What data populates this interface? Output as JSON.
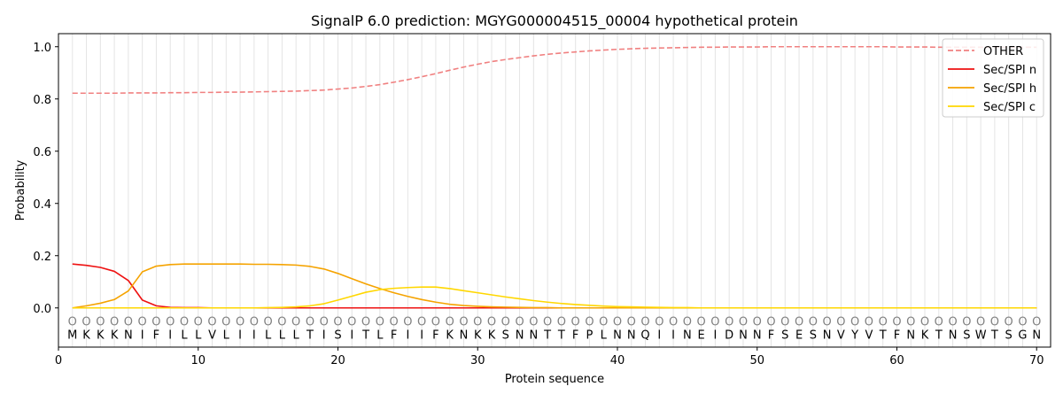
{
  "chart_data": {
    "type": "line",
    "title": "SignalP 6.0 prediction: MGYG000004515_00004 hypothetical protein",
    "xlabel": "Protein sequence",
    "ylabel": "Probability",
    "xlim": [
      0,
      71
    ],
    "ylim": [
      -0.15,
      1.05
    ],
    "x_ticks": [
      0,
      10,
      20,
      30,
      40,
      50,
      60,
      70
    ],
    "y_ticks": [
      0.0,
      0.2,
      0.4,
      0.6,
      0.8,
      1.0
    ],
    "y_tick_labels": [
      "0.0",
      "0.2",
      "0.4",
      "0.6",
      "0.8",
      "1.0"
    ],
    "grid": "vertical lines at each residue",
    "legend_position": "top-right",
    "sequence": [
      "M",
      "K",
      "K",
      "K",
      "N",
      "I",
      "F",
      "I",
      "L",
      "L",
      "V",
      "L",
      "I",
      "I",
      "L",
      "L",
      "L",
      "T",
      "I",
      "S",
      "I",
      "T",
      "L",
      "F",
      "I",
      "I",
      "F",
      "K",
      "N",
      "K",
      "K",
      "S",
      "N",
      "N",
      "T",
      "T",
      "F",
      "P",
      "L",
      "N",
      "N",
      "Q",
      "I",
      "I",
      "N",
      "E",
      "I",
      "D",
      "N",
      "N",
      "F",
      "S",
      "E",
      "S",
      "N",
      "V",
      "Y",
      "V",
      "T",
      "F",
      "N",
      "K",
      "T",
      "N",
      "S",
      "W",
      "T",
      "S",
      "G",
      "N"
    ],
    "position_marker": "O",
    "series": [
      {
        "name": "OTHER",
        "color": "#f08080",
        "style": "dashed",
        "values": [
          0.822,
          0.822,
          0.822,
          0.822,
          0.823,
          0.823,
          0.823,
          0.824,
          0.824,
          0.825,
          0.825,
          0.826,
          0.826,
          0.827,
          0.828,
          0.829,
          0.83,
          0.832,
          0.834,
          0.838,
          0.842,
          0.848,
          0.855,
          0.864,
          0.874,
          0.885,
          0.897,
          0.91,
          0.922,
          0.933,
          0.943,
          0.951,
          0.958,
          0.965,
          0.971,
          0.976,
          0.98,
          0.984,
          0.987,
          0.99,
          0.992,
          0.994,
          0.995,
          0.996,
          0.997,
          0.998,
          0.998,
          0.999,
          0.999,
          0.999,
          1.0,
          1.0,
          1.0,
          1.0,
          1.0,
          1.0,
          1.0,
          1.0,
          1.0,
          0.999,
          0.999,
          0.999,
          0.998,
          0.998,
          0.998,
          0.998,
          0.998,
          0.998,
          0.998,
          0.998
        ]
      },
      {
        "name": "Sec/SPI n",
        "color": "#ee1111",
        "style": "solid",
        "values": [
          0.168,
          0.163,
          0.155,
          0.14,
          0.105,
          0.03,
          0.008,
          0.002,
          0.001,
          0.001,
          0.0,
          0.0,
          0.0,
          0.0,
          0.0,
          0.0,
          0.0,
          0.0,
          0.0,
          0.0,
          0.0,
          0.0,
          0.0,
          0.0,
          0.0,
          0.0,
          0.0,
          0.0,
          0.0,
          0.0,
          0.0,
          0.0,
          0.0,
          0.0,
          0.0,
          0.0,
          0.0,
          0.0,
          0.0,
          0.0,
          0.0,
          0.0,
          0.0,
          0.0,
          0.0,
          0.0,
          0.0,
          0.0,
          0.0,
          0.0,
          0.0,
          0.0,
          0.0,
          0.0,
          0.0,
          0.0,
          0.0,
          0.0,
          0.0,
          0.0,
          0.0,
          0.0,
          0.0,
          0.0,
          0.0,
          0.0,
          0.0,
          0.0,
          0.0,
          0.0
        ]
      },
      {
        "name": "Sec/SPI h",
        "color": "#f5a300",
        "style": "solid",
        "values": [
          0.0,
          0.008,
          0.018,
          0.032,
          0.065,
          0.138,
          0.16,
          0.166,
          0.168,
          0.168,
          0.168,
          0.168,
          0.168,
          0.167,
          0.167,
          0.166,
          0.164,
          0.159,
          0.149,
          0.132,
          0.112,
          0.092,
          0.074,
          0.058,
          0.044,
          0.032,
          0.022,
          0.014,
          0.009,
          0.006,
          0.004,
          0.003,
          0.002,
          0.001,
          0.001,
          0.0,
          0.0,
          0.0,
          0.0,
          0.0,
          0.0,
          0.0,
          0.0,
          0.0,
          0.0,
          0.0,
          0.0,
          0.0,
          0.0,
          0.0,
          0.0,
          0.0,
          0.0,
          0.0,
          0.0,
          0.0,
          0.0,
          0.0,
          0.0,
          0.0,
          0.0,
          0.0,
          0.0,
          0.0,
          0.0,
          0.0,
          0.0,
          0.0,
          0.0,
          0.0
        ]
      },
      {
        "name": "Sec/SPI c",
        "color": "#ffd700",
        "style": "solid",
        "values": [
          0.0,
          0.0,
          0.0,
          0.0,
          0.0,
          0.0,
          0.0,
          0.0,
          0.0,
          0.0,
          0.0,
          0.0,
          0.0,
          0.0,
          0.001,
          0.002,
          0.004,
          0.008,
          0.016,
          0.03,
          0.045,
          0.06,
          0.07,
          0.075,
          0.078,
          0.08,
          0.08,
          0.074,
          0.066,
          0.058,
          0.05,
          0.042,
          0.035,
          0.028,
          0.022,
          0.017,
          0.013,
          0.01,
          0.007,
          0.005,
          0.004,
          0.003,
          0.002,
          0.001,
          0.001,
          0.0,
          0.0,
          0.0,
          0.0,
          0.0,
          0.0,
          0.0,
          0.0,
          0.0,
          0.0,
          0.0,
          0.0,
          0.0,
          0.0,
          0.0,
          0.0,
          0.0,
          0.0,
          0.0,
          0.0,
          0.0,
          0.0,
          0.0,
          0.0,
          0.0
        ]
      }
    ]
  }
}
